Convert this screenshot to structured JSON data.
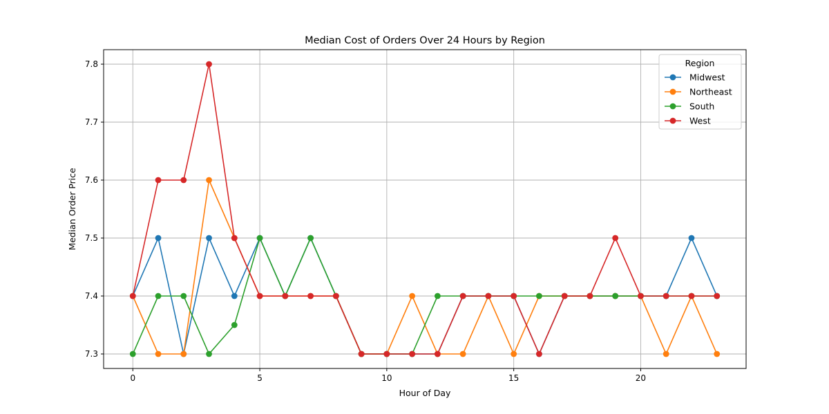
{
  "chart_data": {
    "type": "line",
    "title": "Median Cost of Orders Over 24 Hours by Region",
    "xlabel": "Hour of Day",
    "ylabel": "Median Order Price",
    "xlim": [
      -1.15,
      24.15
    ],
    "ylim": [
      7.275,
      7.825
    ],
    "x_ticks": [
      0,
      5,
      10,
      15,
      20
    ],
    "y_ticks": [
      7.3,
      7.4,
      7.5,
      7.6,
      7.7,
      7.8
    ],
    "y_tick_labels": [
      "7.3",
      "7.4",
      "7.5",
      "7.6",
      "7.7",
      "7.8"
    ],
    "grid": true,
    "legend": {
      "title": "Region",
      "position": "top-right"
    },
    "x": [
      0,
      1,
      2,
      3,
      4,
      5,
      6,
      7,
      8,
      9,
      10,
      11,
      12,
      13,
      14,
      15,
      16,
      17,
      18,
      19,
      20,
      21,
      22,
      23
    ],
    "series": [
      {
        "name": "Midwest",
        "color": "#1f77b4",
        "values": [
          7.4,
          7.5,
          7.3,
          7.5,
          7.4,
          7.5,
          7.4,
          7.5,
          7.4,
          7.3,
          7.3,
          7.3,
          7.3,
          7.4,
          7.4,
          7.4,
          7.3,
          7.4,
          7.4,
          7.4,
          7.4,
          7.4,
          7.5,
          7.4
        ]
      },
      {
        "name": "Northeast",
        "color": "#ff7f0e",
        "values": [
          7.4,
          7.3,
          7.3,
          7.6,
          7.5,
          7.4,
          7.4,
          7.4,
          7.4,
          7.3,
          7.3,
          7.4,
          7.3,
          7.3,
          7.4,
          7.3,
          7.4,
          7.4,
          7.4,
          7.4,
          7.4,
          7.3,
          7.4,
          7.3
        ]
      },
      {
        "name": "South",
        "color": "#2ca02c",
        "values": [
          7.3,
          7.4,
          7.4,
          7.3,
          7.35,
          7.5,
          7.4,
          7.5,
          7.4,
          7.3,
          7.3,
          7.3,
          7.4,
          7.4,
          7.4,
          7.4,
          7.4,
          7.4,
          7.4,
          7.4,
          7.4,
          7.4,
          7.4,
          7.4
        ]
      },
      {
        "name": "West",
        "color": "#d62728",
        "values": [
          7.4,
          7.6,
          7.6,
          7.8,
          7.5,
          7.4,
          7.4,
          7.4,
          7.4,
          7.3,
          7.3,
          7.3,
          7.3,
          7.4,
          7.4,
          7.4,
          7.3,
          7.4,
          7.4,
          7.5,
          7.4,
          7.4,
          7.4,
          7.4
        ]
      }
    ]
  }
}
